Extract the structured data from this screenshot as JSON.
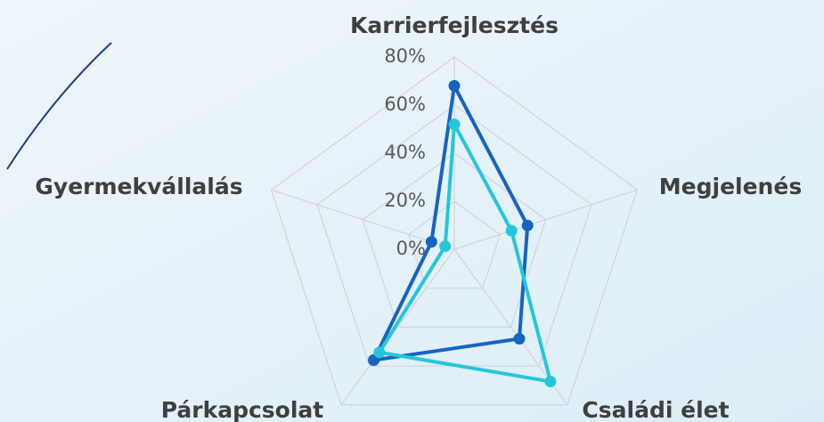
{
  "chart_data": {
    "type": "radar",
    "title": "Karrierfejlesztés",
    "categories": [
      "Karrierfejlesztés",
      "Megjelenés",
      "Családi élet",
      "Párkapcsolat",
      "Gyermekvállalás"
    ],
    "series": [
      {
        "color": "#1565c0",
        "values": [
          68,
          32,
          46,
          57,
          10
        ]
      },
      {
        "color": "#26c6da",
        "values": [
          52,
          25,
          68,
          53,
          4
        ]
      }
    ],
    "ylim": [
      0,
      80
    ],
    "yticks": [
      {
        "value": 0,
        "label": "0%"
      },
      {
        "value": 20,
        "label": "20%"
      },
      {
        "value": 40,
        "label": "40%"
      },
      {
        "value": 60,
        "label": "60%"
      },
      {
        "value": 80,
        "label": "80%"
      }
    ],
    "grid": true
  }
}
